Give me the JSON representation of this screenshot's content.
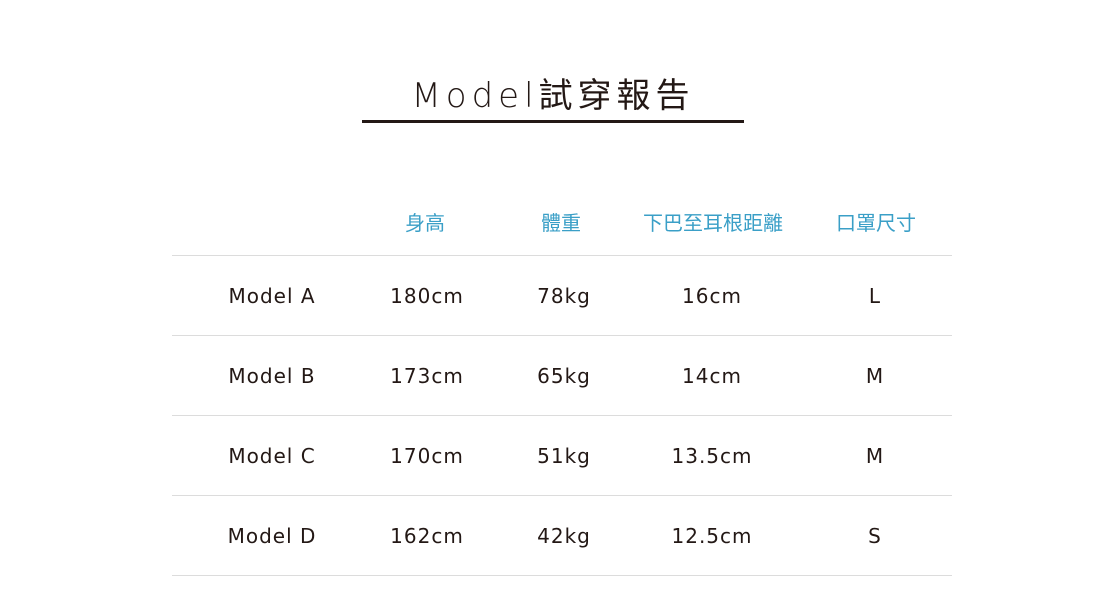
{
  "title": "Model試穿報告",
  "headers": [
    "身高",
    "體重",
    "下巴至耳根距離",
    "口罩尺寸"
  ],
  "rows": [
    [
      "Model A",
      "180cm",
      "78kg",
      "16cm",
      "L"
    ],
    [
      "Model B",
      "173cm",
      "65kg",
      "14cm",
      "M"
    ],
    [
      "Model C",
      "170cm",
      "51kg",
      "13.5cm",
      "M"
    ],
    [
      "Model D",
      "162cm",
      "42kg",
      "12.5cm",
      "S"
    ]
  ],
  "colors": {
    "header": "#3a9fc7",
    "text": "#231815",
    "rule": "#dcdcdc"
  }
}
